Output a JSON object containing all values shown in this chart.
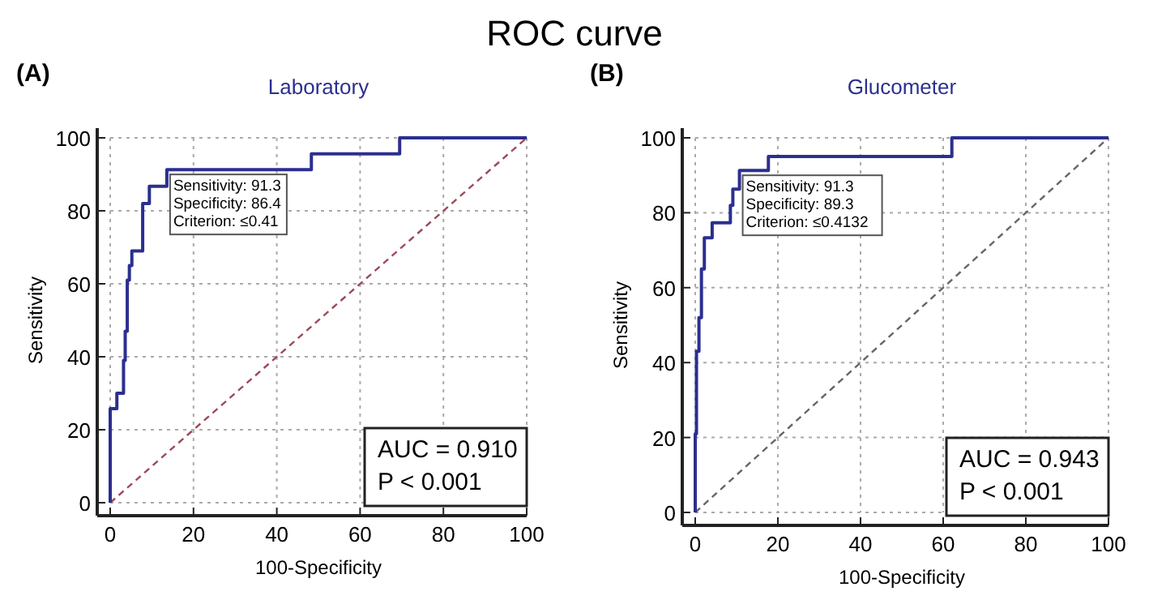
{
  "chart_data": [
    {
      "type": "line",
      "title": "ROC curve",
      "subtitle": "Laboratory",
      "xlabel": "100-Specificity",
      "ylabel": "Sensitivity",
      "xlim": [
        0,
        100
      ],
      "ylim": [
        0,
        100
      ],
      "xticks": [
        0,
        20,
        40,
        60,
        80,
        100
      ],
      "yticks": [
        0,
        20,
        40,
        60,
        80,
        100
      ],
      "grid": true,
      "annotations": [
        "(A)",
        {
          "text": "Sensitivity: 91.3\nSpecificity: 86.4\nCriterion: ≤0.41",
          "x": 13.6,
          "y": 91.3
        },
        "AUC = 0.910\nP < 0.001"
      ],
      "series": [
        {
          "color": "#9c4a5a",
          "line_style": "dashed",
          "x": [
            0,
            100
          ],
          "values": [
            0,
            100
          ]
        },
        {
          "color": "#2b2f8f",
          "line_style": "solid",
          "x": [
            0,
            0,
            1.6,
            1.6,
            3.2,
            3.2,
            3.6,
            3.6,
            4.1,
            4.1,
            4.6,
            4.6,
            5.2,
            5.2,
            7.8,
            7.8,
            9.4,
            9.4,
            13.6,
            13.6,
            48.3,
            48.3,
            69.5,
            69.5,
            100
          ],
          "values": [
            0,
            25.8,
            25.8,
            30,
            30,
            39,
            39,
            47,
            47,
            61,
            61,
            65,
            65,
            69,
            69,
            82,
            82,
            86.7,
            86.7,
            91.3,
            91.3,
            95.6,
            95.6,
            100,
            100
          ]
        }
      ]
    },
    {
      "type": "line",
      "subtitle": "Glucometer",
      "xlabel": "100-Specificity",
      "ylabel": "Sensitivity",
      "xlim": [
        0,
        100
      ],
      "ylim": [
        0,
        100
      ],
      "xticks": [
        0,
        20,
        40,
        60,
        80,
        100
      ],
      "yticks": [
        0,
        20,
        40,
        60,
        80,
        100
      ],
      "grid": true,
      "annotations": [
        "(B)",
        {
          "text": "Sensitivity: 91.3\nSpecificity: 89.3\nCriterion: ≤0.4132",
          "x": 10.7,
          "y": 91.3
        },
        "AUC = 0.943\nP < 0.001"
      ],
      "series": [
        {
          "color": "#666666",
          "line_style": "dashed",
          "x": [
            0,
            100
          ],
          "values": [
            0,
            100
          ]
        },
        {
          "color": "#2b2f8f",
          "line_style": "solid",
          "x": [
            0,
            0,
            0.3,
            0.3,
            0.9,
            0.9,
            1.5,
            1.5,
            2.2,
            2.2,
            4.1,
            4.1,
            8.5,
            8.5,
            9.1,
            9.1,
            10.7,
            10.7,
            17.7,
            17.7,
            62.1,
            62.1,
            100
          ],
          "values": [
            0,
            21,
            21,
            43,
            43,
            52,
            52,
            65,
            65,
            73.3,
            73.3,
            77.3,
            77.3,
            82,
            82,
            86.3,
            86.3,
            91.3,
            91.3,
            95,
            95,
            100,
            100
          ]
        }
      ]
    }
  ]
}
